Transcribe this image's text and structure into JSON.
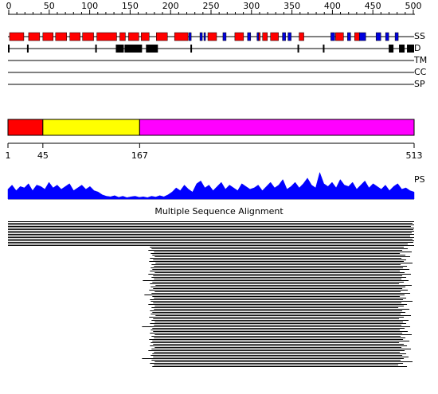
{
  "ruler": {
    "ticks": [
      0,
      50,
      100,
      150,
      200,
      250,
      300,
      350,
      400,
      450,
      500
    ]
  },
  "tracks": {
    "ss": {
      "label": "SS",
      "helix_color": "#ff0000",
      "strand_color": "#0000dd",
      "helices": [
        [
          3,
          21
        ],
        [
          27,
          41
        ],
        [
          45,
          58
        ],
        [
          61,
          75
        ],
        [
          79,
          92
        ],
        [
          95,
          109
        ],
        [
          113,
          138
        ],
        [
          142,
          149
        ],
        [
          153,
          166
        ],
        [
          169,
          179
        ],
        [
          188,
          202
        ],
        [
          211,
          228
        ],
        [
          253,
          264
        ],
        [
          287,
          298
        ],
        [
          316,
          319
        ],
        [
          322,
          328
        ],
        [
          332,
          342
        ],
        [
          368,
          374
        ],
        [
          414,
          424
        ],
        [
          438,
          444
        ]
      ],
      "strands": [
        [
          229,
          232
        ],
        [
          243,
          246
        ],
        [
          248,
          250
        ],
        [
          272,
          276
        ],
        [
          303,
          307
        ],
        [
          315,
          317
        ],
        [
          347,
          351
        ],
        [
          354,
          358
        ],
        [
          408,
          413
        ],
        [
          429,
          433
        ],
        [
          444,
          452
        ],
        [
          465,
          471
        ],
        [
          477,
          481
        ],
        [
          489,
          493
        ]
      ]
    },
    "d": {
      "label": "D",
      "color": "#000000",
      "segments": [
        [
          1,
          2
        ],
        [
          25,
          26
        ],
        [
          111,
          112
        ],
        [
          137,
          147
        ],
        [
          148,
          170
        ],
        [
          175,
          190
        ],
        [
          231,
          232
        ],
        [
          366,
          367
        ],
        [
          398,
          399
        ],
        [
          481,
          487
        ],
        [
          494,
          501
        ],
        [
          504,
          513
        ]
      ]
    },
    "tm": {
      "label": "TM"
    },
    "cc": {
      "label": "CC"
    },
    "sp": {
      "label": "SP"
    }
  },
  "domains": {
    "boundaries": [
      1,
      45,
      167,
      513
    ],
    "colors": [
      "#ff0000",
      "#ffff00",
      "#ff00ff"
    ]
  },
  "ps": {
    "label": "PS",
    "color": "#0000ff",
    "profile": [
      0.35,
      0.5,
      0.3,
      0.45,
      0.4,
      0.55,
      0.3,
      0.5,
      0.45,
      0.35,
      0.6,
      0.4,
      0.5,
      0.35,
      0.45,
      0.55,
      0.3,
      0.4,
      0.5,
      0.35,
      0.45,
      0.3,
      0.25,
      0.15,
      0.1,
      0.08,
      0.12,
      0.06,
      0.1,
      0.05,
      0.08,
      0.1,
      0.06,
      0.08,
      0.05,
      0.1,
      0.07,
      0.12,
      0.08,
      0.15,
      0.25,
      0.4,
      0.3,
      0.5,
      0.35,
      0.25,
      0.55,
      0.65,
      0.4,
      0.5,
      0.3,
      0.45,
      0.6,
      0.35,
      0.5,
      0.4,
      0.3,
      0.55,
      0.45,
      0.35,
      0.4,
      0.5,
      0.3,
      0.45,
      0.6,
      0.4,
      0.5,
      0.7,
      0.35,
      0.45,
      0.6,
      0.4,
      0.55,
      0.75,
      0.5,
      0.4,
      0.95,
      0.55,
      0.45,
      0.6,
      0.4,
      0.7,
      0.5,
      0.45,
      0.6,
      0.35,
      0.5,
      0.65,
      0.4,
      0.55,
      0.45,
      0.35,
      0.5,
      0.3,
      0.45,
      0.55,
      0.35,
      0.4,
      0.3,
      0.25
    ]
  },
  "alignment": {
    "title": "Multiple Sequence Alignment",
    "hits": [
      [
        1,
        513
      ],
      [
        1,
        511
      ],
      [
        1,
        513
      ],
      [
        1,
        509
      ],
      [
        1,
        513
      ],
      [
        1,
        512
      ],
      [
        1,
        513
      ],
      [
        1,
        510
      ],
      [
        1,
        513
      ],
      [
        1,
        508
      ],
      [
        1,
        513
      ],
      [
        1,
        511
      ],
      [
        1,
        513
      ],
      [
        1,
        512
      ],
      [
        1,
        505
      ],
      [
        1,
        513
      ],
      [
        180,
        500
      ],
      [
        182,
        505
      ],
      [
        178,
        498
      ],
      [
        185,
        510
      ],
      [
        181,
        495
      ],
      [
        183,
        502
      ],
      [
        186,
        508
      ],
      [
        180,
        497
      ],
      [
        184,
        503
      ],
      [
        179,
        500
      ],
      [
        187,
        511
      ],
      [
        182,
        496
      ],
      [
        185,
        504
      ],
      [
        181,
        499
      ],
      [
        183,
        507
      ],
      [
        180,
        495
      ],
      [
        186,
        501
      ],
      [
        178,
        509
      ],
      [
        184,
        498
      ],
      [
        182,
        503
      ],
      [
        185,
        497
      ],
      [
        171,
        506
      ],
      [
        183,
        500
      ],
      [
        180,
        494
      ],
      [
        187,
        510
      ],
      [
        181,
        502
      ],
      [
        184,
        498
      ],
      [
        179,
        505
      ],
      [
        186,
        496
      ],
      [
        182,
        508
      ],
      [
        173,
        501
      ],
      [
        183,
        495
      ],
      [
        185,
        503
      ],
      [
        180,
        499
      ],
      [
        181,
        511
      ],
      [
        184,
        497
      ],
      [
        178,
        504
      ],
      [
        186,
        500
      ],
      [
        182,
        493
      ],
      [
        185,
        507
      ],
      [
        180,
        498
      ],
      [
        183,
        502
      ],
      [
        181,
        496
      ],
      [
        187,
        509
      ],
      [
        179,
        500
      ],
      [
        184,
        494
      ],
      [
        182,
        506
      ],
      [
        186,
        499
      ],
      [
        180,
        503
      ],
      [
        185,
        497
      ],
      [
        170,
        508
      ],
      [
        183,
        501
      ],
      [
        181,
        495
      ],
      [
        184,
        505
      ],
      [
        180,
        498
      ],
      [
        186,
        510
      ],
      [
        182,
        496
      ],
      [
        185,
        502
      ],
      [
        179,
        499
      ],
      [
        183,
        507
      ],
      [
        181,
        494
      ],
      [
        184,
        500
      ],
      [
        180,
        504
      ],
      [
        186,
        497
      ],
      [
        182,
        509
      ],
      [
        178,
        501
      ],
      [
        185,
        495
      ],
      [
        183,
        503
      ],
      [
        181,
        498
      ],
      [
        184,
        506
      ],
      [
        170,
        500
      ],
      [
        182,
        496
      ],
      [
        186,
        511
      ],
      [
        180,
        499
      ],
      [
        185,
        493
      ],
      [
        183,
        504
      ]
    ]
  }
}
